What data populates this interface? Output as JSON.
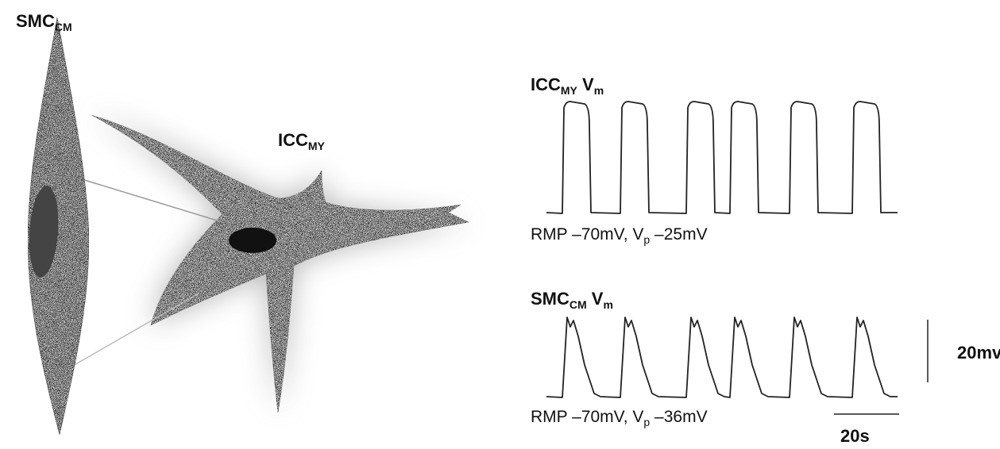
{
  "cells": [
    {
      "label": {
        "main": "SMC",
        "sub": "CM"
      }
    },
    {
      "label": {
        "main": "ICC",
        "sub": "MY"
      }
    }
  ],
  "traces": [
    {
      "title": {
        "main": "ICC",
        "sub": "MY",
        "main2": " V",
        "sub2": "m"
      },
      "caption": {
        "text": "RMP –70mV, V",
        "sub": "p",
        "text2": " –25mV"
      }
    },
    {
      "title": {
        "main": "SMC",
        "sub": "CM",
        "main2": " V",
        "sub2": "m"
      },
      "caption": {
        "text": "RMP –70mV, V",
        "sub": "p",
        "text2": " –36mV"
      }
    }
  ],
  "scale_bars": {
    "voltage": "20mv",
    "time": "20s"
  }
}
